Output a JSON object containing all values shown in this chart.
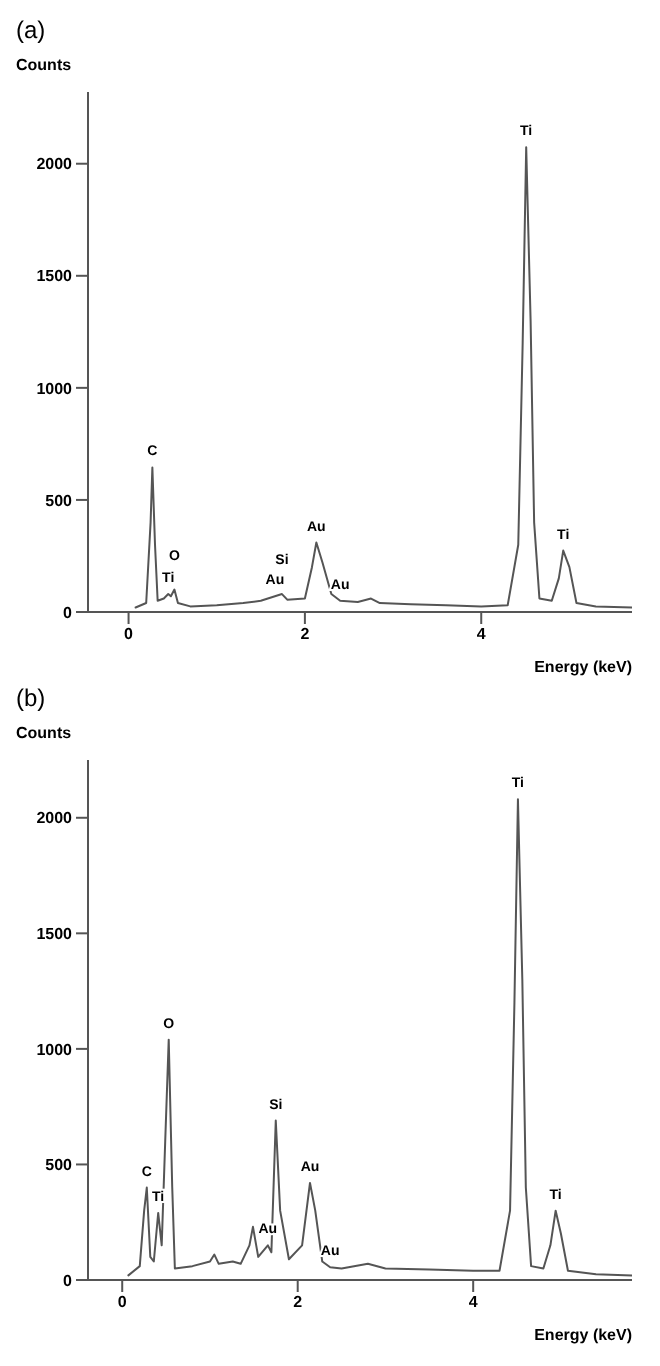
{
  "chart_data": [
    {
      "type": "line",
      "title": "(a)",
      "xlabel": "Energy (keV)",
      "ylabel": "Counts",
      "xlim": [
        -0.46,
        5.71
      ],
      "ylim": [
        0,
        2320
      ],
      "xticks": [
        0,
        2,
        4
      ],
      "yticks": [
        0,
        500,
        1000,
        1500,
        2000
      ],
      "grid": false,
      "legend": false,
      "marker": "none",
      "line_style": "solid",
      "x": [
        0.08,
        0.2,
        0.25,
        0.27,
        0.3,
        0.33,
        0.4,
        0.45,
        0.48,
        0.52,
        0.56,
        0.7,
        1.0,
        1.3,
        1.5,
        1.66,
        1.74,
        1.8,
        2.0,
        2.08,
        2.13,
        2.2,
        2.3,
        2.4,
        2.6,
        2.75,
        2.85,
        3.2,
        3.6,
        4.0,
        4.3,
        4.42,
        4.47,
        4.51,
        4.56,
        4.6,
        4.66,
        4.8,
        4.88,
        4.93,
        5.0,
        5.08,
        5.3,
        5.71
      ],
      "series": [
        {
          "color": "#555555",
          "values": [
            20,
            40,
            400,
            645,
            300,
            50,
            60,
            80,
            70,
            100,
            40,
            25,
            30,
            40,
            50,
            70,
            80,
            55,
            60,
            200,
            310,
            220,
            80,
            50,
            45,
            60,
            40,
            35,
            30,
            25,
            30,
            300,
            1200,
            2074,
            1300,
            400,
            60,
            50,
            150,
            274,
            200,
            40,
            25,
            20
          ]
        }
      ],
      "annotations": [
        {
          "text": "C",
          "x": 0.27,
          "y": 645
        },
        {
          "text": "Ti",
          "x": 0.45,
          "y": 80
        },
        {
          "text": "O",
          "x": 0.52,
          "y": 100
        },
        {
          "text": "Au",
          "x": 1.66,
          "y": 70
        },
        {
          "text": "Si",
          "x": 1.74,
          "y": 80
        },
        {
          "text": "Au",
          "x": 2.13,
          "y": 310
        },
        {
          "text": "Au",
          "x": 2.4,
          "y": 50
        },
        {
          "text": "Ti",
          "x": 4.51,
          "y": 2074
        },
        {
          "text": "Ti",
          "x": 4.93,
          "y": 274
        }
      ]
    },
    {
      "type": "line",
      "title": "(b)",
      "xlabel": "Energy (keV)",
      "ylabel": "Counts",
      "xlim": [
        -0.39,
        5.81
      ],
      "ylim": [
        0,
        2250
      ],
      "xticks": [
        0,
        2,
        4
      ],
      "yticks": [
        0,
        500,
        1000,
        1500,
        2000
      ],
      "grid": false,
      "legend": false,
      "marker": "none",
      "line_style": "solid",
      "x": [
        0.07,
        0.2,
        0.25,
        0.28,
        0.32,
        0.36,
        0.41,
        0.45,
        0.49,
        0.53,
        0.57,
        0.6,
        0.8,
        1.0,
        1.05,
        1.1,
        1.26,
        1.35,
        1.45,
        1.49,
        1.55,
        1.66,
        1.7,
        1.75,
        1.8,
        1.9,
        2.05,
        2.14,
        2.2,
        2.28,
        2.37,
        2.5,
        2.8,
        3.0,
        3.5,
        4.0,
        4.3,
        4.42,
        4.47,
        4.51,
        4.56,
        4.6,
        4.66,
        4.8,
        4.88,
        4.94,
        5.0,
        5.08,
        5.4,
        5.81
      ],
      "series": [
        {
          "color": "#555555",
          "values": [
            20,
            60,
            300,
            400,
            100,
            80,
            290,
            150,
            600,
            1040,
            400,
            50,
            60,
            80,
            110,
            70,
            80,
            70,
            150,
            230,
            100,
            150,
            120,
            690,
            300,
            90,
            150,
            420,
            300,
            80,
            55,
            50,
            70,
            50,
            45,
            40,
            40,
            300,
            1200,
            2080,
            1300,
            400,
            60,
            50,
            150,
            300,
            200,
            40,
            25,
            20
          ]
        }
      ],
      "annotations": [
        {
          "text": "C",
          "x": 0.28,
          "y": 400
        },
        {
          "text": "Ti",
          "x": 0.41,
          "y": 290
        },
        {
          "text": "O",
          "x": 0.53,
          "y": 1040
        },
        {
          "text": "Au",
          "x": 1.66,
          "y": 150
        },
        {
          "text": "Si",
          "x": 1.75,
          "y": 690
        },
        {
          "text": "Au",
          "x": 2.14,
          "y": 420
        },
        {
          "text": "Au",
          "x": 2.37,
          "y": 55
        },
        {
          "text": "Ti",
          "x": 4.51,
          "y": 2080
        },
        {
          "text": "Ti",
          "x": 4.94,
          "y": 300
        }
      ]
    }
  ]
}
